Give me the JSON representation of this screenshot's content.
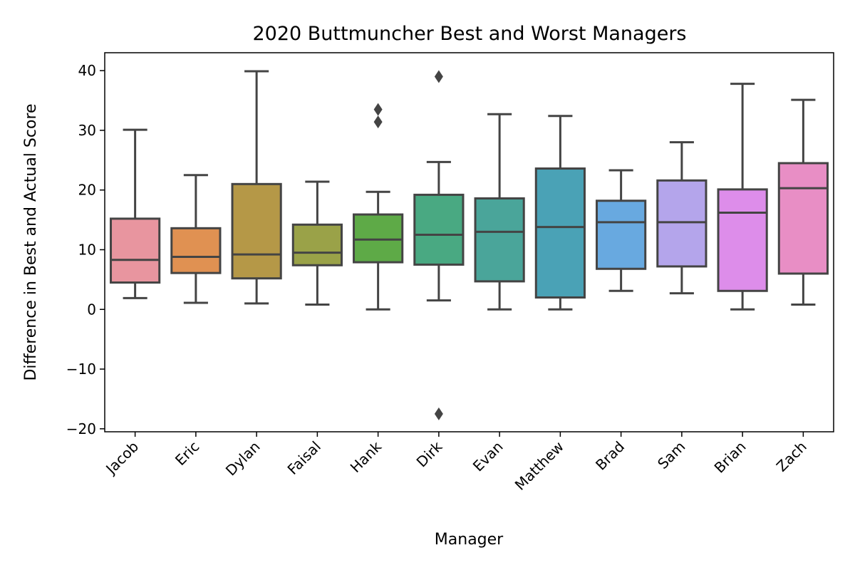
{
  "chart_data": {
    "type": "box",
    "title": "2020 Buttmuncher Best and Worst Managers",
    "xlabel": "Manager",
    "ylabel": "Difference in Best and Actual Score",
    "ylim": [
      -20.5,
      43
    ],
    "yticks": [
      -20,
      -10,
      0,
      10,
      20,
      30,
      40
    ],
    "ytick_labels": [
      "−20",
      "−10",
      "0",
      "10",
      "20",
      "30",
      "40"
    ],
    "grid": false,
    "legend": "none",
    "categories": [
      "Jacob",
      "Eric",
      "Dylan",
      "Faisal",
      "Hank",
      "Dirk",
      "Evan",
      "Matthew",
      "Brad",
      "Sam",
      "Brian",
      "Zach"
    ],
    "boxes": [
      {
        "category": "Jacob",
        "whisker_low": 1.9,
        "q1": 4.5,
        "median": 8.3,
        "q3": 15.2,
        "whisker_high": 30.1,
        "outliers": [],
        "color": "#E8959F"
      },
      {
        "category": "Eric",
        "whisker_low": 1.1,
        "q1": 6.1,
        "median": 8.8,
        "q3": 13.6,
        "whisker_high": 22.5,
        "outliers": [],
        "color": "#E09152"
      },
      {
        "category": "Dylan",
        "whisker_low": 1.0,
        "q1": 5.2,
        "median": 9.2,
        "q3": 21.0,
        "whisker_high": 39.9,
        "outliers": [],
        "color": "#B59847"
      },
      {
        "category": "Faisal",
        "whisker_low": 0.8,
        "q1": 7.4,
        "median": 9.5,
        "q3": 14.2,
        "whisker_high": 21.4,
        "outliers": [],
        "color": "#9AA248"
      },
      {
        "category": "Hank",
        "whisker_low": 0.0,
        "q1": 7.9,
        "median": 11.7,
        "q3": 15.9,
        "whisker_high": 19.7,
        "outliers": [
          31.4,
          33.5
        ],
        "color": "#5EAA47"
      },
      {
        "category": "Dirk",
        "whisker_low": 1.5,
        "q1": 7.5,
        "median": 12.5,
        "q3": 19.2,
        "whisker_high": 24.7,
        "outliers": [
          39.0,
          -17.5
        ],
        "color": "#49A982"
      },
      {
        "category": "Evan",
        "whisker_low": 0.0,
        "q1": 4.7,
        "median": 13.0,
        "q3": 18.6,
        "whisker_high": 32.7,
        "outliers": [],
        "color": "#4AA59A"
      },
      {
        "category": "Matthew",
        "whisker_low": 0.0,
        "q1": 2.0,
        "median": 13.8,
        "q3": 23.6,
        "whisker_high": 32.4,
        "outliers": [],
        "color": "#4AA2B6"
      },
      {
        "category": "Brad",
        "whisker_low": 3.1,
        "q1": 6.8,
        "median": 14.6,
        "q3": 18.2,
        "whisker_high": 23.3,
        "outliers": [],
        "color": "#68A9E0"
      },
      {
        "category": "Sam",
        "whisker_low": 2.7,
        "q1": 7.2,
        "median": 14.6,
        "q3": 21.6,
        "whisker_high": 28.0,
        "outliers": [],
        "color": "#B4A5EB"
      },
      {
        "category": "Brian",
        "whisker_low": 0.0,
        "q1": 3.1,
        "median": 16.2,
        "q3": 20.1,
        "whisker_high": 37.8,
        "outliers": [],
        "color": "#DD8DEA"
      },
      {
        "category": "Zach",
        "whisker_low": 0.8,
        "q1": 6.0,
        "median": 20.3,
        "q3": 24.5,
        "whisker_high": 35.1,
        "outliers": [],
        "color": "#E88EC5"
      }
    ],
    "line_color": "#444444"
  }
}
